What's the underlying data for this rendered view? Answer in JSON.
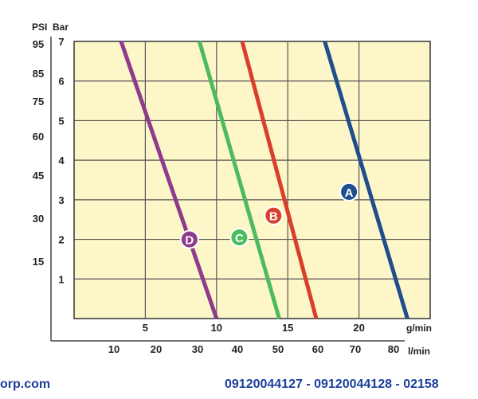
{
  "chart_data": {
    "type": "line",
    "x_primary": {
      "unit": "g/min",
      "ticks": [
        5,
        10,
        15,
        20
      ],
      "range": [
        0,
        25
      ]
    },
    "x_secondary": {
      "unit": "l/min",
      "ticks": [
        10,
        20,
        30,
        40,
        50,
        60,
        70,
        80
      ]
    },
    "y_primary": {
      "unit": "Bar",
      "ticks": [
        1,
        2,
        3,
        4,
        5,
        6,
        7
      ],
      "range": [
        0,
        7
      ]
    },
    "y_secondary": {
      "unit": "PSI",
      "ticks": [
        15,
        30,
        45,
        60,
        75,
        85,
        95
      ]
    },
    "grid": true,
    "background": "#fdf6c9",
    "series": [
      {
        "name": "A",
        "color": "#1f4e8c",
        "points": [
          [
            17.6,
            7
          ],
          [
            23.4,
            0
          ]
        ],
        "label_at": [
          19.3,
          3.2
        ]
      },
      {
        "name": "B",
        "color": "#d9402b",
        "points": [
          [
            11.8,
            7
          ],
          [
            17.0,
            0
          ]
        ],
        "label_at": [
          14.0,
          2.6
        ]
      },
      {
        "name": "C",
        "color": "#4cbb5e",
        "points": [
          [
            8.8,
            7
          ],
          [
            14.4,
            0
          ]
        ],
        "label_at": [
          11.6,
          2.05
        ]
      },
      {
        "name": "D",
        "color": "#8e3b8c",
        "points": [
          [
            3.3,
            7
          ],
          [
            10.0,
            0
          ]
        ],
        "label_at": [
          8.1,
          2.0
        ]
      }
    ]
  },
  "labels": {
    "psi": "PSI",
    "bar": "Bar",
    "gmin": "g/min",
    "lmin": "l/min"
  },
  "footer": {
    "left": "orp.com",
    "right": "09120044127 - 09120044128 - 02158"
  }
}
